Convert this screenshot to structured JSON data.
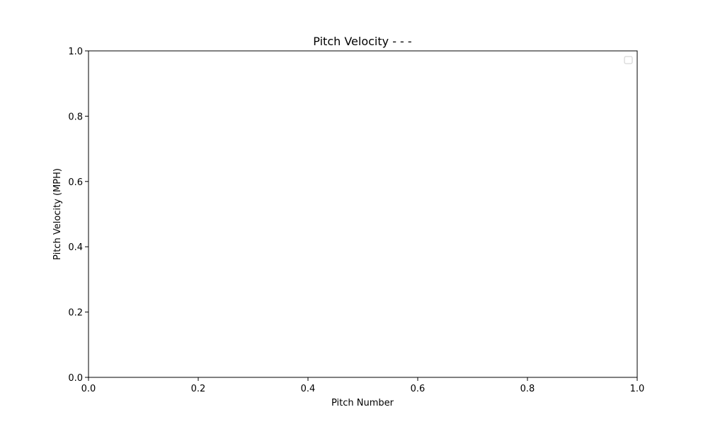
{
  "chart_data": {
    "type": "line",
    "title": "Pitch Velocity - - -",
    "xlabel": "Pitch Number",
    "ylabel": "Pitch Velocity (MPH)",
    "xlim": [
      0.0,
      1.0
    ],
    "ylim": [
      0.0,
      1.0
    ],
    "x_ticks": [
      "0.0",
      "0.2",
      "0.4",
      "0.6",
      "0.8",
      "1.0"
    ],
    "y_ticks": [
      "0.0",
      "0.2",
      "0.4",
      "0.6",
      "0.8",
      "1.0"
    ],
    "series": [],
    "grid": false,
    "legend": {
      "placement": "top-right",
      "entries": []
    }
  }
}
